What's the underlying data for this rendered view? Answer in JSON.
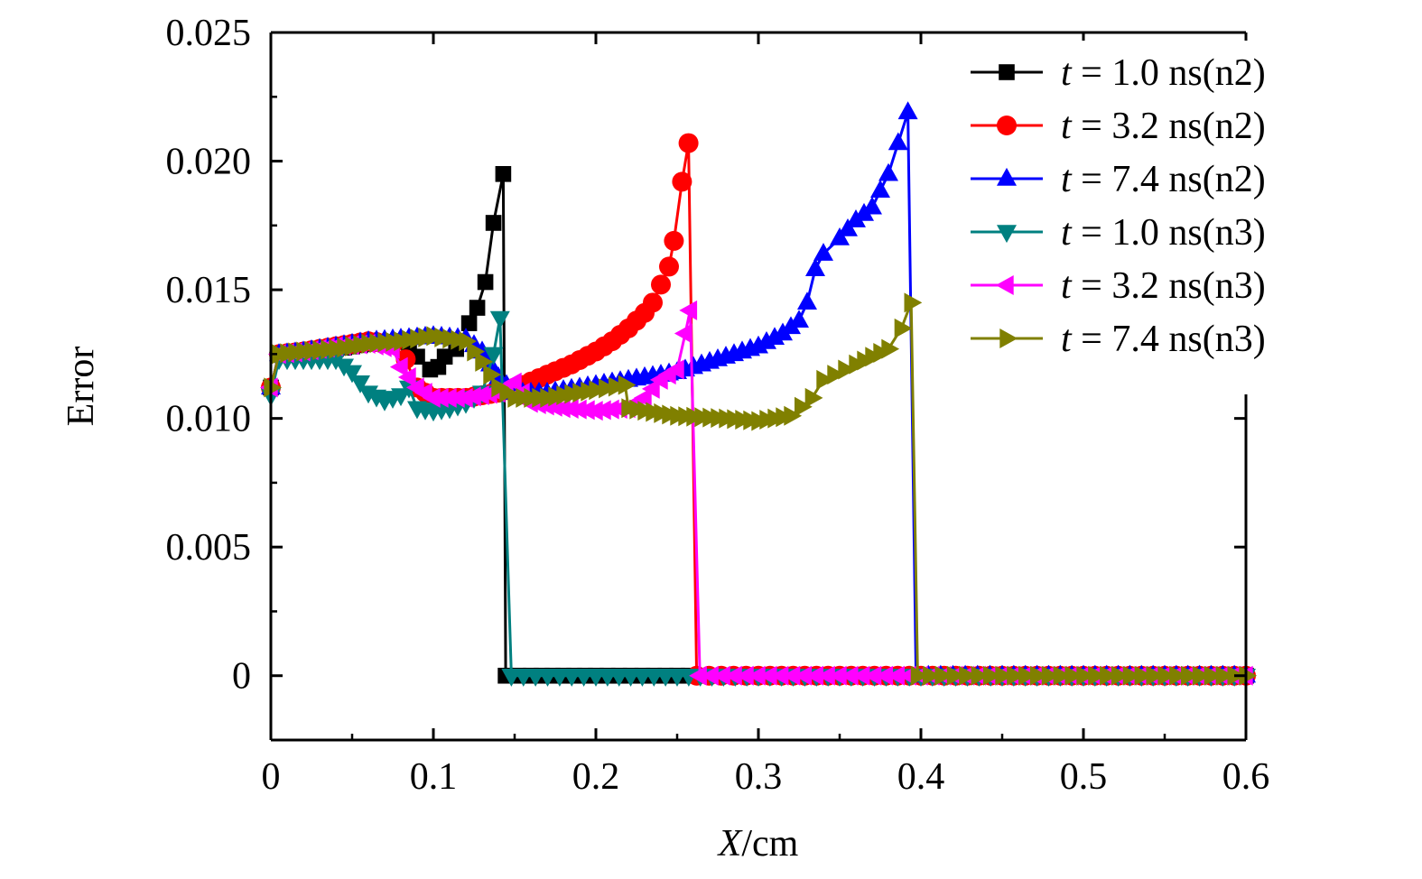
{
  "chart_data": {
    "type": "line",
    "xlabel": "X/cm",
    "ylabel": "Error",
    "xlim": [
      0,
      0.6
    ],
    "ylim": [
      -0.0025,
      0.025
    ],
    "xticks": [
      "0",
      "0.1",
      "0.2",
      "0.3",
      "0.4",
      "0.5",
      "0.6"
    ],
    "yticks": [
      "0",
      "0.005",
      "0.010",
      "0.015",
      "0.020",
      "0.025"
    ],
    "grid": false,
    "legend_position": "top-right",
    "series": [
      {
        "name": "t = 1.0 ns(n2)",
        "color": "#000000",
        "marker": "square",
        "x": [
          0,
          0.005,
          0.02,
          0.04,
          0.06,
          0.08,
          0.09,
          0.098,
          0.103,
          0.107,
          0.114,
          0.122,
          0.127,
          0.132,
          0.137,
          0.143,
          0.1445,
          0.16,
          0.2,
          0.25,
          0.3,
          0.35,
          0.4,
          0.45,
          0.5,
          0.55,
          0.6
        ],
        "y": [
          0.0112,
          0.0125,
          0.0126,
          0.0127,
          0.0129,
          0.013,
          0.0124,
          0.0119,
          0.012,
          0.0124,
          0.0127,
          0.0137,
          0.0143,
          0.0153,
          0.0176,
          0.0195,
          0,
          0,
          0,
          0,
          0,
          0,
          0,
          0,
          0,
          0,
          0
        ]
      },
      {
        "name": "t = 3.2 ns(n2)",
        "color": "#ff0000",
        "marker": "circle",
        "x": [
          0,
          0.005,
          0.02,
          0.04,
          0.06,
          0.075,
          0.083,
          0.09,
          0.1,
          0.12,
          0.14,
          0.155,
          0.17,
          0.185,
          0.2,
          0.21,
          0.22,
          0.23,
          0.235,
          0.24,
          0.245,
          0.248,
          0.253,
          0.257,
          0.262,
          0.3,
          0.35,
          0.4,
          0.45,
          0.5,
          0.55,
          0.6
        ],
        "y": [
          0.0112,
          0.0125,
          0.0126,
          0.0128,
          0.013,
          0.0129,
          0.0123,
          0.0112,
          0.0108,
          0.0108,
          0.011,
          0.0113,
          0.0117,
          0.0121,
          0.0126,
          0.013,
          0.0135,
          0.0141,
          0.0145,
          0.0152,
          0.0159,
          0.0169,
          0.0192,
          0.0207,
          0,
          0,
          0,
          0,
          0,
          0,
          0,
          0
        ]
      },
      {
        "name": "t = 7.4 ns(n2)",
        "color": "#0000ff",
        "marker": "triangle-up",
        "x": [
          0,
          0.005,
          0.02,
          0.04,
          0.06,
          0.08,
          0.1,
          0.12,
          0.13,
          0.14,
          0.15,
          0.17,
          0.2,
          0.22,
          0.25,
          0.28,
          0.3,
          0.315,
          0.325,
          0.33,
          0.335,
          0.34,
          0.35,
          0.36,
          0.37,
          0.38,
          0.386,
          0.392,
          0.397,
          0.45,
          0.5,
          0.55,
          0.6
        ],
        "y": [
          0.0112,
          0.0125,
          0.0126,
          0.0128,
          0.013,
          0.0131,
          0.0132,
          0.0131,
          0.0126,
          0.0116,
          0.011,
          0.011,
          0.0113,
          0.0115,
          0.0118,
          0.0124,
          0.0128,
          0.0133,
          0.0138,
          0.0145,
          0.0158,
          0.0164,
          0.017,
          0.0177,
          0.0182,
          0.0195,
          0.0207,
          0.0219,
          0,
          0,
          0,
          0,
          0
        ]
      },
      {
        "name": "t = 1.0 ns(n3)",
        "color": "#008080",
        "marker": "triangle-down",
        "x": [
          0,
          0.005,
          0.02,
          0.04,
          0.05,
          0.06,
          0.07,
          0.08,
          0.085,
          0.09,
          0.1,
          0.11,
          0.12,
          0.13,
          0.137,
          0.141,
          0.148,
          0.2,
          0.25,
          0.3,
          0.35,
          0.4,
          0.45,
          0.5,
          0.55,
          0.6
        ],
        "y": [
          0.0109,
          0.0123,
          0.0123,
          0.0123,
          0.0118,
          0.011,
          0.0107,
          0.0109,
          0.0112,
          0.0104,
          0.0103,
          0.0104,
          0.0106,
          0.011,
          0.0125,
          0.0139,
          0,
          0,
          0,
          0,
          0,
          0,
          0,
          0,
          0,
          0
        ]
      },
      {
        "name": "t = 3.2 ns(n3)",
        "color": "#ff00ff",
        "marker": "triangle-left",
        "x": [
          0,
          0.005,
          0.02,
          0.04,
          0.06,
          0.075,
          0.08,
          0.09,
          0.1,
          0.12,
          0.14,
          0.15,
          0.16,
          0.18,
          0.2,
          0.22,
          0.23,
          0.24,
          0.25,
          0.255,
          0.258,
          0.264,
          0.3,
          0.35,
          0.4,
          0.45,
          0.5,
          0.55,
          0.6
        ],
        "y": [
          0.0112,
          0.0125,
          0.0126,
          0.0128,
          0.0129,
          0.0127,
          0.012,
          0.0112,
          0.0108,
          0.0108,
          0.011,
          0.0114,
          0.0106,
          0.0104,
          0.0103,
          0.0104,
          0.0108,
          0.0115,
          0.0119,
          0.0133,
          0.0142,
          0,
          0,
          0,
          0,
          0,
          0,
          0,
          0
        ]
      },
      {
        "name": "t = 7.4 ns(n3)",
        "color": "#808000",
        "marker": "triangle-right",
        "x": [
          0,
          0.005,
          0.02,
          0.04,
          0.06,
          0.08,
          0.1,
          0.12,
          0.13,
          0.14,
          0.15,
          0.17,
          0.2,
          0.218,
          0.22,
          0.25,
          0.28,
          0.3,
          0.32,
          0.333,
          0.34,
          0.36,
          0.38,
          0.388,
          0.394,
          0.398,
          0.45,
          0.5,
          0.55,
          0.6
        ],
        "y": [
          0.0112,
          0.0125,
          0.0126,
          0.0127,
          0.0129,
          0.013,
          0.0132,
          0.013,
          0.0122,
          0.0112,
          0.0108,
          0.0108,
          0.0111,
          0.0113,
          0.0104,
          0.0101,
          0.01,
          0.0099,
          0.0101,
          0.0108,
          0.0115,
          0.0121,
          0.0127,
          0.0135,
          0.0145,
          0,
          0,
          0,
          0,
          0
        ]
      }
    ]
  }
}
